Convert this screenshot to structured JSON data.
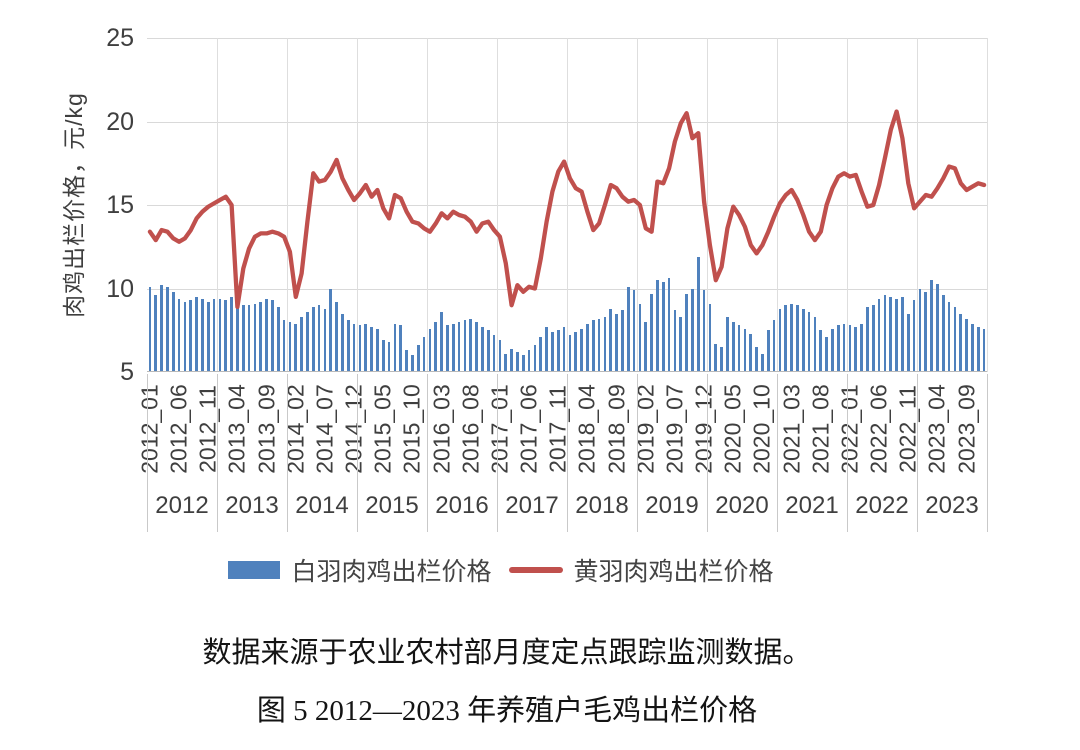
{
  "chart_data": {
    "type": "bar+line",
    "title": "图 5 2012—2023 年养殖户毛鸡出栏价格",
    "source_note": "数据来源于农业农村部月度定点跟踪监测数据。",
    "ylabel": "肉鸡出栏价格，元/kg",
    "ylim": [
      5,
      25
    ],
    "yticks": [
      5,
      10,
      15,
      20,
      25
    ],
    "grid": "horizontal major + year separators",
    "legend_position": "bottom",
    "x_months_start": "2012_01",
    "x_months_end": "2023_12",
    "x_tick_labels": [
      "2012_01",
      "2012_06",
      "2012_11",
      "2013_04",
      "2013_09",
      "2014_02",
      "2014_07",
      "2014_12",
      "2015_05",
      "2015_10",
      "2016_03",
      "2016_08",
      "2017_01",
      "2017_06",
      "2017_11",
      "2018_04",
      "2018_09",
      "2019_02",
      "2019_07",
      "2019_12",
      "2020_05",
      "2020_10",
      "2021_03",
      "2021_08",
      "2022_01",
      "2022_06",
      "2022_11",
      "2023_04",
      "2023_09"
    ],
    "x_tick_step_months": 5,
    "year_labels": [
      "2012",
      "2013",
      "2014",
      "2015",
      "2016",
      "2017",
      "2018",
      "2019",
      "2020",
      "2021",
      "2022",
      "2023"
    ],
    "series": [
      {
        "name": "白羽肉鸡出栏价格",
        "type": "bar",
        "color": "#4f81bd",
        "values": [
          10.1,
          9.6,
          10.2,
          10.1,
          9.8,
          9.4,
          9.2,
          9.3,
          9.5,
          9.4,
          9.2,
          9.4,
          9.4,
          9.3,
          9.5,
          9.4,
          9.0,
          9.0,
          9.1,
          9.2,
          9.4,
          9.3,
          8.9,
          8.1,
          8.0,
          7.9,
          8.3,
          8.6,
          8.9,
          9.0,
          8.8,
          10.0,
          9.2,
          8.5,
          8.1,
          7.9,
          7.8,
          7.9,
          7.7,
          7.6,
          6.9,
          6.8,
          7.9,
          7.8,
          6.3,
          6.0,
          6.6,
          7.1,
          7.6,
          8.0,
          8.6,
          7.8,
          7.9,
          8.0,
          8.1,
          8.2,
          8.0,
          7.7,
          7.5,
          7.2,
          6.9,
          6.1,
          6.4,
          6.2,
          6.0,
          6.3,
          6.6,
          7.1,
          7.7,
          7.4,
          7.5,
          7.7,
          7.2,
          7.4,
          7.6,
          7.9,
          8.1,
          8.2,
          8.3,
          8.8,
          8.5,
          8.7,
          10.1,
          9.9,
          9.1,
          8.0,
          9.7,
          10.5,
          10.4,
          10.6,
          8.7,
          8.3,
          9.7,
          10.0,
          11.9,
          9.9,
          9.1,
          6.7,
          6.5,
          8.3,
          8.0,
          7.8,
          7.6,
          7.3,
          6.5,
          6.1,
          7.5,
          8.1,
          8.8,
          9.0,
          9.1,
          9.0,
          8.8,
          8.6,
          8.3,
          7.5,
          7.1,
          7.6,
          7.8,
          7.9,
          7.8,
          7.7,
          7.9,
          8.9,
          9.0,
          9.4,
          9.6,
          9.5,
          9.4,
          9.5,
          8.5,
          9.3,
          10.0,
          9.8,
          10.5,
          10.3,
          9.6,
          9.2,
          8.9,
          8.5,
          8.2,
          7.9,
          7.7,
          7.6
        ]
      },
      {
        "name": "黄羽肉鸡出栏价格",
        "type": "line",
        "color": "#c0504d",
        "values": [
          13.4,
          12.9,
          13.5,
          13.4,
          13.0,
          12.8,
          13.0,
          13.5,
          14.2,
          14.6,
          14.9,
          15.1,
          15.3,
          15.5,
          15.0,
          8.9,
          11.2,
          12.4,
          13.1,
          13.3,
          13.3,
          13.4,
          13.3,
          13.1,
          12.2,
          9.5,
          10.9,
          14.0,
          16.9,
          16.4,
          16.5,
          17.0,
          17.7,
          16.6,
          15.9,
          15.3,
          15.7,
          16.2,
          15.5,
          15.9,
          14.8,
          14.2,
          15.6,
          15.4,
          14.6,
          14.0,
          13.9,
          13.6,
          13.4,
          13.9,
          14.5,
          14.2,
          14.6,
          14.4,
          14.3,
          14.0,
          13.4,
          13.9,
          14.0,
          13.5,
          13.1,
          11.5,
          9.0,
          10.2,
          9.8,
          10.1,
          10.0,
          11.8,
          14.0,
          15.8,
          17.0,
          17.6,
          16.6,
          16.0,
          15.8,
          14.6,
          13.5,
          13.9,
          15.0,
          16.2,
          16.0,
          15.5,
          15.2,
          15.3,
          15.0,
          13.6,
          13.4,
          16.4,
          16.3,
          17.2,
          18.8,
          19.9,
          20.5,
          19.0,
          19.3,
          15.2,
          12.6,
          10.5,
          11.3,
          13.6,
          14.9,
          14.4,
          13.7,
          12.6,
          12.1,
          12.6,
          13.4,
          14.3,
          15.1,
          15.6,
          15.9,
          15.3,
          14.4,
          13.4,
          12.9,
          13.4,
          15.0,
          16.0,
          16.7,
          16.9,
          16.7,
          16.8,
          15.8,
          14.9,
          15.0,
          16.2,
          17.8,
          19.5,
          20.6,
          19.0,
          16.3,
          14.8,
          15.2,
          15.6,
          15.5,
          16.0,
          16.6,
          17.3,
          17.2,
          16.3,
          15.9,
          16.1,
          16.3,
          16.2
        ]
      }
    ]
  },
  "colors": {
    "bar": "#4f81bd",
    "line": "#c0504d",
    "gridline": "#d9d9d9",
    "axis_text": "#3f3f3f"
  }
}
